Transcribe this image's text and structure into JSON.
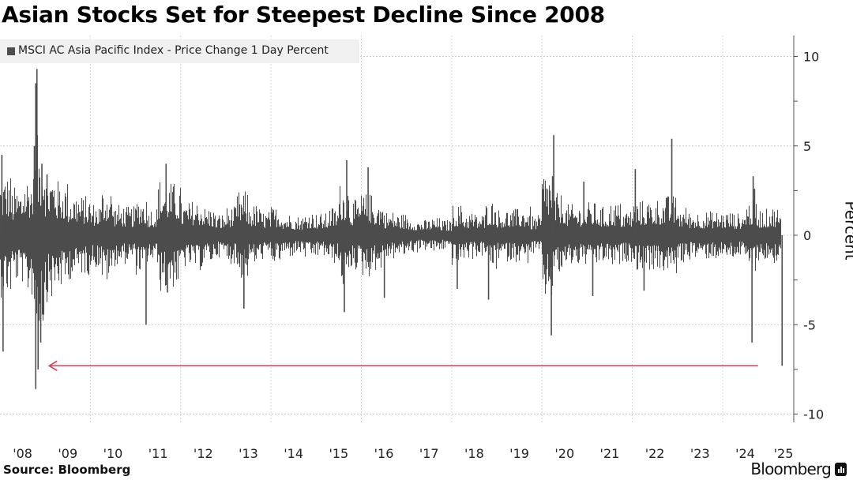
{
  "chart_data": {
    "type": "bar",
    "title": "Asian Stocks Set for Steepest Decline Since 2008",
    "legend": [
      {
        "name": "MSCI AC Asia Pacific Index - Price Change 1 Day Percent",
        "color": "#4d4d4d"
      }
    ],
    "legend_placement": "top-left",
    "ylabel": "Percent",
    "ylim": [
      -10,
      10
    ],
    "yticks": [
      10,
      5,
      0,
      -5,
      -10
    ],
    "xlim": [
      "2008-01",
      "2025-04"
    ],
    "xticks": [
      "'08",
      "'09",
      "'10",
      "'11",
      "'12",
      "'13",
      "'14",
      "'15",
      "'16",
      "'17",
      "'18",
      "'19",
      "'20",
      "'21",
      "'22",
      "'23",
      "'24",
      "'25"
    ],
    "grid": true,
    "y_axis_side": "right",
    "bar_color": "#4d4d4d",
    "typical_daily_move_by_quarter": {
      "start": "2008-Q1",
      "values": [
        2.8,
        2.2,
        2.8,
        4.5,
        3.0,
        2.5,
        2.0,
        1.8,
        1.5,
        2.2,
        1.4,
        1.3,
        1.8,
        1.3,
        2.6,
        2.4,
        1.5,
        1.6,
        1.3,
        1.0,
        1.3,
        2.0,
        1.4,
        1.1,
        1.3,
        1.0,
        0.9,
        1.1,
        1.0,
        1.3,
        2.4,
        1.6,
        1.9,
        1.6,
        1.1,
        1.0,
        0.8,
        0.7,
        0.8,
        0.7,
        1.4,
        1.1,
        1.0,
        1.6,
        1.2,
        1.2,
        1.3,
        0.9,
        3.0,
        1.9,
        1.4,
        1.4,
        1.5,
        1.3,
        1.5,
        1.2,
        1.6,
        1.6,
        1.7,
        1.8,
        1.3,
        1.1,
        1.1,
        1.1,
        1.1,
        1.0,
        1.6,
        1.2,
        1.3,
        1.0
      ]
    },
    "notable_moves": [
      {
        "date": "2008-01",
        "value": 4.5
      },
      {
        "date": "2008-01",
        "value": -6.5
      },
      {
        "date": "2008-09",
        "value": 5.0
      },
      {
        "date": "2008-10",
        "value": 8.5
      },
      {
        "date": "2008-10",
        "value": 9.3
      },
      {
        "date": "2008-10",
        "value": -7.5
      },
      {
        "date": "2008-10",
        "value": -8.6
      },
      {
        "date": "2008-11",
        "value": -6.0
      },
      {
        "date": "2008-11",
        "value": 4.0
      },
      {
        "date": "2009-01",
        "value": 3.4
      },
      {
        "date": "2011-03",
        "value": -5.0
      },
      {
        "date": "2011-08",
        "value": 4.0
      },
      {
        "date": "2011-09",
        "value": -3.2
      },
      {
        "date": "2013-05",
        "value": -4.1
      },
      {
        "date": "2015-08",
        "value": 4.2
      },
      {
        "date": "2015-08",
        "value": -4.3
      },
      {
        "date": "2016-02",
        "value": 3.8
      },
      {
        "date": "2016-06",
        "value": -3.5
      },
      {
        "date": "2018-02",
        "value": -3.0
      },
      {
        "date": "2018-10",
        "value": -3.6
      },
      {
        "date": "2020-03",
        "value": 5.6
      },
      {
        "date": "2020-03",
        "value": -5.6
      },
      {
        "date": "2020-03",
        "value": 3.3
      },
      {
        "date": "2020-11",
        "value": 3.0
      },
      {
        "date": "2021-02",
        "value": -3.4
      },
      {
        "date": "2022-01",
        "value": 3.7
      },
      {
        "date": "2022-03",
        "value": -3.1
      },
      {
        "date": "2022-11",
        "value": 5.4
      },
      {
        "date": "2024-08",
        "value": -6.0
      },
      {
        "date": "2024-08",
        "value": 3.3
      },
      {
        "date": "2024-09",
        "value": 2.6
      },
      {
        "date": "2025-04",
        "value": -7.3
      }
    ],
    "annotation": {
      "type": "arrow",
      "from": "2025-04",
      "to": "2008-10",
      "value": -7.3,
      "color": "#d9405a"
    }
  },
  "source": "Source: Bloomberg",
  "brand": "Bloomberg"
}
